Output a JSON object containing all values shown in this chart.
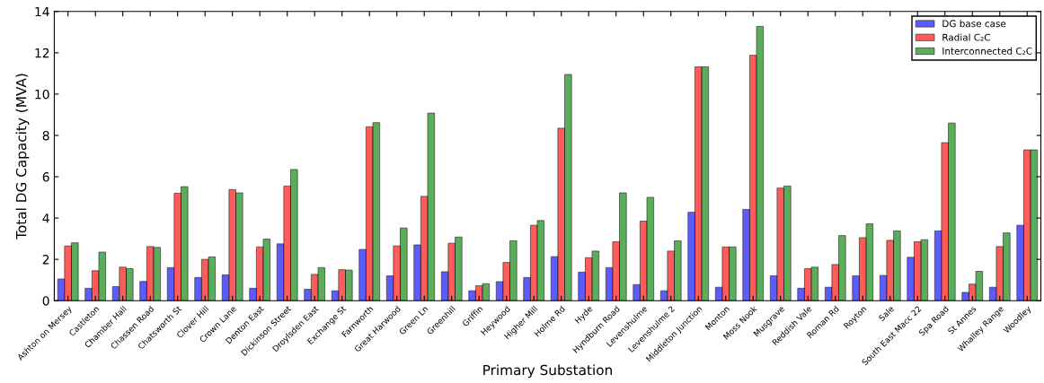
{
  "chart_data": {
    "type": "bar",
    "xlabel": "Primary Substation",
    "ylabel": "Total DG Capacity (MVA)",
    "categories": [
      "Ashton on Mersey",
      "Castleton",
      "Chamber Hall",
      "Chassen Road",
      "Chatsworth St",
      "Clover Hill",
      "Crown Lane",
      "Denton East",
      "Dickinson Street",
      "Droylsden East",
      "Exchange St",
      "Farnworth",
      "Great Harwood",
      "Green Ln",
      "Greenhill",
      "Griffin",
      "Heywood",
      "Higher Mill",
      "Holme Rd",
      "Hyde",
      "Hyndburn Road",
      "Levenshulme",
      "Levenshulme 2",
      "Middleton Junction",
      "Monton",
      "Moss Nook",
      "Musgrave",
      "Reddish Vale",
      "Roman Rd",
      "Royton",
      "Sale",
      "South East Macc 22",
      "Spa Road",
      "St Annes",
      "Whalley Range",
      "Woodley"
    ],
    "series": [
      {
        "name": "DG base case",
        "color": "#3333ff",
        "values": [
          1.05,
          0.6,
          0.68,
          0.93,
          1.6,
          1.12,
          1.25,
          0.6,
          2.75,
          0.55,
          0.48,
          2.48,
          1.2,
          2.7,
          1.4,
          0.48,
          0.92,
          1.12,
          2.13,
          1.38,
          1.6,
          0.78,
          0.48,
          4.28,
          0.65,
          4.42,
          1.2,
          0.6,
          0.65,
          1.2,
          1.22,
          2.1,
          3.38,
          0.4,
          0.65,
          3.65
        ]
      },
      {
        "name": "Radial C₂C",
        "color": "#ff3333",
        "values": [
          2.65,
          1.45,
          1.62,
          2.62,
          5.2,
          2.0,
          5.38,
          2.6,
          5.55,
          1.27,
          1.5,
          8.42,
          2.65,
          5.05,
          2.78,
          0.72,
          1.85,
          3.65,
          8.35,
          2.08,
          2.85,
          3.85,
          2.4,
          11.32,
          2.6,
          11.88,
          5.45,
          1.55,
          1.75,
          3.05,
          2.92,
          2.85,
          7.65,
          0.8,
          2.62,
          7.3
        ]
      },
      {
        "name": "Interconnected C₂C",
        "color": "#339933",
        "values": [
          2.8,
          2.35,
          1.55,
          2.58,
          5.52,
          2.12,
          5.22,
          2.98,
          6.35,
          1.6,
          1.48,
          8.62,
          3.52,
          9.08,
          3.08,
          0.82,
          2.9,
          3.88,
          10.95,
          2.4,
          5.22,
          5.0,
          2.9,
          11.32,
          2.6,
          13.28,
          5.55,
          1.62,
          3.15,
          3.72,
          3.38,
          2.95,
          8.6,
          1.42,
          3.28,
          7.3
        ]
      }
    ],
    "ylim": [
      0,
      14
    ],
    "yticks": [
      0,
      2,
      4,
      6,
      8,
      10,
      12,
      14
    ],
    "grid": false,
    "legend": "top right"
  }
}
